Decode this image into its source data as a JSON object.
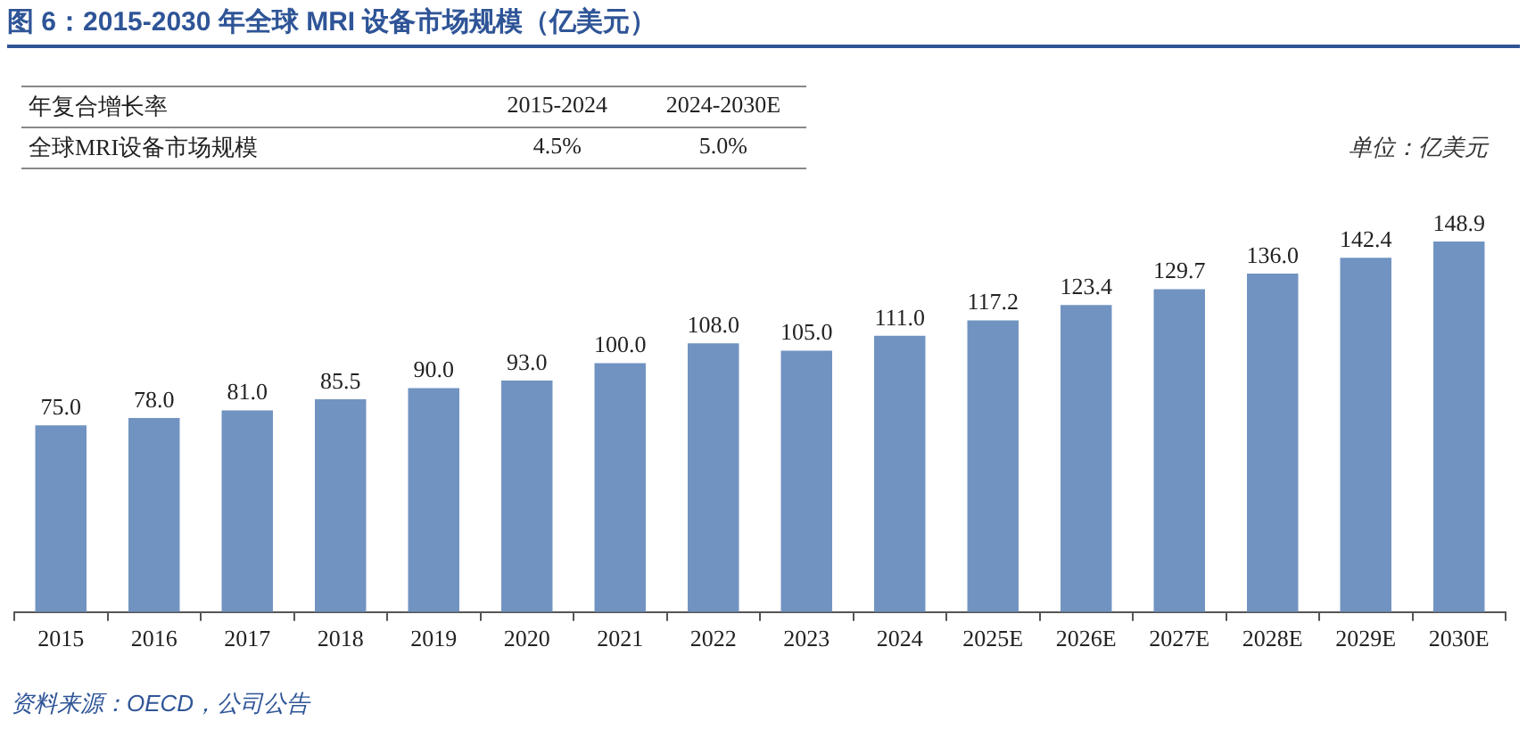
{
  "chart_data": {
    "type": "bar",
    "title": "图 6：2015-2030 年全球 MRI 设备市场规模（亿美元）",
    "categories": [
      "2015",
      "2016",
      "2017",
      "2018",
      "2019",
      "2020",
      "2021",
      "2022",
      "2023",
      "2024",
      "2025E",
      "2026E",
      "2027E",
      "2028E",
      "2029E",
      "2030E"
    ],
    "values": [
      75.0,
      78.0,
      81.0,
      85.5,
      90.0,
      93.0,
      100.0,
      108.0,
      105.0,
      111.0,
      117.2,
      123.4,
      129.7,
      136.0,
      142.4,
      148.9
    ],
    "value_labels": [
      "75.0",
      "78.0",
      "81.0",
      "85.5",
      "90.0",
      "93.0",
      "100.0",
      "108.0",
      "105.0",
      "111.0",
      "117.2",
      "123.4",
      "129.7",
      "136.0",
      "142.4",
      "148.9"
    ],
    "color": "#7193c1",
    "grid": false,
    "legend": false,
    "annotations": [
      "年复合增长率",
      "2015-2024",
      "2024-2030E",
      "全球MRI设备市场规模",
      "4.5%",
      "5.0%",
      "单位：亿美元",
      "资料来源：OECD，公司公告"
    ]
  }
}
